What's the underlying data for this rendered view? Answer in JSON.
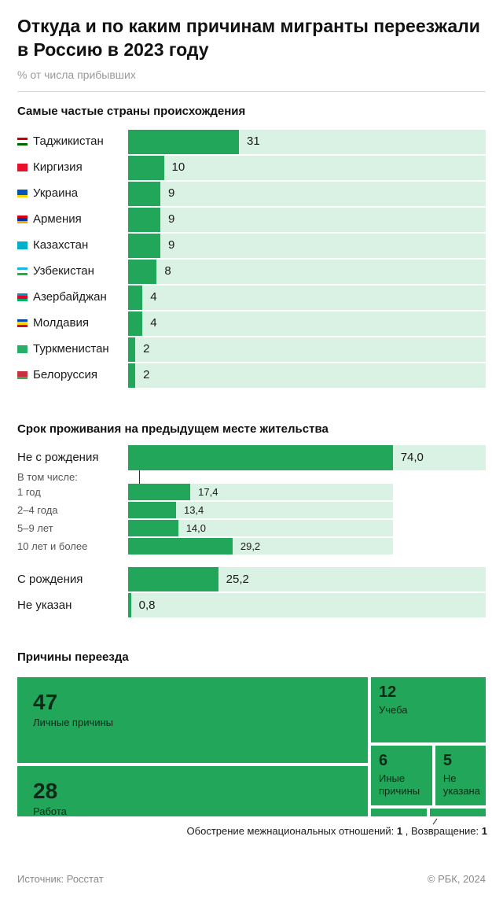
{
  "header": {
    "title": "Откуда и по каким причинам мигранты переезжали в Россию в 2023 году",
    "subtitle": "% от числа прибывших"
  },
  "colors": {
    "bar": "#21a65a",
    "track": "#d9f2e4"
  },
  "chart_data": [
    {
      "type": "bar",
      "title": "Самые частые страны происхождения",
      "categories": [
        "Таджикистан",
        "Киргизия",
        "Украина",
        "Армения",
        "Казахстан",
        "Узбекистан",
        "Азербайджан",
        "Молдавия",
        "Туркменистан",
        "Белоруссия"
      ],
      "values": [
        31,
        10,
        9,
        9,
        9,
        8,
        4,
        4,
        2,
        2
      ],
      "value_labels": [
        "31",
        "10",
        "9",
        "9",
        "9",
        "8",
        "4",
        "4",
        "2",
        "2"
      ],
      "flags": [
        "flag-tj",
        "flag-kg",
        "flag-ua",
        "flag-am",
        "flag-kz",
        "flag-uz",
        "flag-az",
        "flag-md",
        "flag-tm",
        "flag-by"
      ],
      "xlim": [
        0,
        100
      ]
    },
    {
      "type": "bar",
      "title": "Срок проживания на предыдущем месте жительства",
      "xlim": [
        0,
        100
      ],
      "main": {
        "label": "Не с рождения",
        "value": 74.0,
        "value_label": "74,0"
      },
      "breakdown_label": "В том числе:",
      "breakdown": [
        {
          "label": "1 год",
          "value": 17.4,
          "value_label": "17,4"
        },
        {
          "label": "2–4 года",
          "value": 13.4,
          "value_label": "13,4"
        },
        {
          "label": "5–9 лет",
          "value": 14.0,
          "value_label": "14,0"
        },
        {
          "label": "10 лет и более",
          "value": 29.2,
          "value_label": "29,2"
        }
      ],
      "others": [
        {
          "label": "С рождения",
          "value": 25.2,
          "value_label": "25,2"
        },
        {
          "label": "Не указан",
          "value": 0.8,
          "value_label": "0,8"
        }
      ]
    },
    {
      "type": "treemap",
      "title": "Причины переезда",
      "items": [
        {
          "label": "Личные причины",
          "value": 47,
          "value_label": "47"
        },
        {
          "label": "Работа",
          "value": 28,
          "value_label": "28"
        },
        {
          "label": "Учеба",
          "value": 12,
          "value_label": "12"
        },
        {
          "label": "Иные причины",
          "value": 6,
          "value_label": "6"
        },
        {
          "label": "Не указана",
          "value": 5,
          "value_label": "5"
        },
        {
          "label": "Обострение межнациональных отношений",
          "value": 1,
          "value_label": "1"
        },
        {
          "label": "Возвращение",
          "value": 1,
          "value_label": "1"
        }
      ]
    }
  ],
  "footer": {
    "source": "Источник: Росстат",
    "copyright": "© РБК, 2024"
  }
}
